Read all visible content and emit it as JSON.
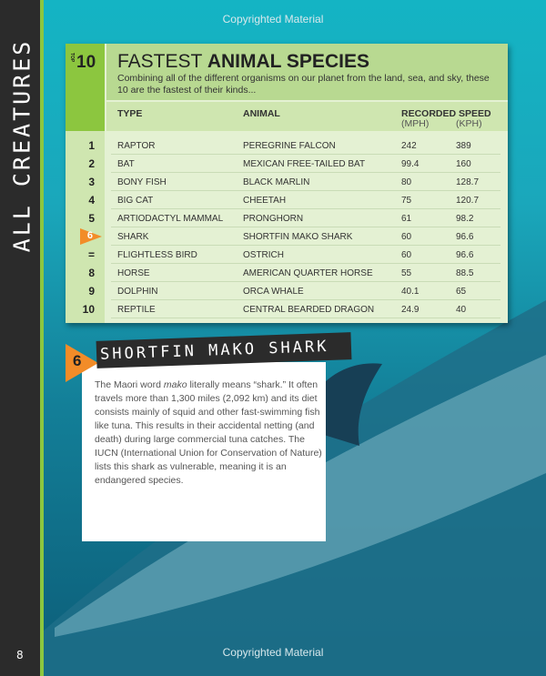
{
  "side_title": "ALL CREATURES",
  "page_number": "8",
  "watermark": "Copyrighted Material",
  "table": {
    "badge_top": "TOP",
    "badge_num": "10",
    "title_light": "FASTEST ",
    "title_bold": "ANIMAL SPECIES",
    "description": "Combining all of the different organisms on our planet from the land, sea, and sky, these 10 are the fastest of their kinds...",
    "headers": {
      "type": "TYPE",
      "animal": "ANIMAL",
      "speed": "RECORDED SPEED",
      "mph": "(MPH)",
      "kph": "(KPH)"
    },
    "highlight_color": "#f28c28",
    "rows": [
      {
        "rank": "1",
        "type": "RAPTOR",
        "animal": "PEREGRINE FALCON",
        "mph": "242",
        "kph": "389"
      },
      {
        "rank": "2",
        "type": "BAT",
        "animal": "MEXICAN FREE-TAILED BAT",
        "mph": "99.4",
        "kph": "160"
      },
      {
        "rank": "3",
        "type": "BONY FISH",
        "animal": "BLACK MARLIN",
        "mph": "80",
        "kph": "128.7"
      },
      {
        "rank": "4",
        "type": "BIG CAT",
        "animal": "CHEETAH",
        "mph": "75",
        "kph": "120.7"
      },
      {
        "rank": "5",
        "type": "ARTIODACTYL MAMMAL",
        "animal": "PRONGHORN",
        "mph": "61",
        "kph": "98.2"
      },
      {
        "rank": "6",
        "type": "SHARK",
        "animal": "SHORTFIN MAKO SHARK",
        "mph": "60",
        "kph": "96.6",
        "highlight": true
      },
      {
        "rank": "=",
        "type": "FLIGHTLESS BIRD",
        "animal": "OSTRICH",
        "mph": "60",
        "kph": "96.6"
      },
      {
        "rank": "8",
        "type": "HORSE",
        "animal": "AMERICAN QUARTER HORSE",
        "mph": "55",
        "kph": "88.5"
      },
      {
        "rank": "9",
        "type": "DOLPHIN",
        "animal": "ORCA WHALE",
        "mph": "40.1",
        "kph": "65"
      },
      {
        "rank": "10",
        "type": "REPTILE",
        "animal": "CENTRAL BEARDED DRAGON",
        "mph": "24.9",
        "kph": "40"
      }
    ]
  },
  "feature": {
    "rank": "6",
    "title": "SHORTFIN MAKO SHARK",
    "body_1": "The Maori word ",
    "body_em": "mako",
    "body_2": " literally means “shark.” It often travels more than 1,300 miles (2,092 km) and its diet consists mainly of squid and other fast-swimming fish like tuna. This results in their accidental netting (and death) during large commercial tuna catches. The IUCN (International Union for Conservation of Nature) lists this shark as vulnerable, meaning it is an endangered species."
  }
}
